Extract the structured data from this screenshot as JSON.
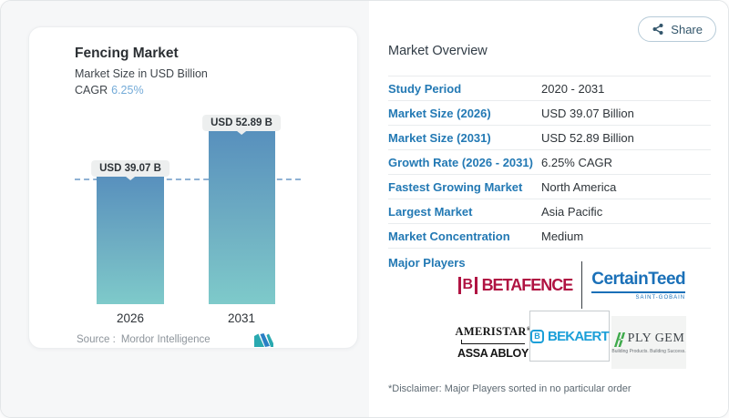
{
  "share": {
    "label": "Share"
  },
  "chart": {
    "title": "Fencing Market",
    "subtitle": "Market Size in USD Billion",
    "cagr_label": "CAGR",
    "cagr_value": "6.25%",
    "source_label": "Source :",
    "source_name": "Mordor Intelligence",
    "bars": [
      {
        "year": "2026",
        "label": "USD 39.07 B"
      },
      {
        "year": "2031",
        "label": "USD 52.89 B"
      }
    ]
  },
  "chart_data": {
    "type": "bar",
    "categories": [
      "2026",
      "2031"
    ],
    "values": [
      39.07,
      52.89
    ],
    "title": "Fencing Market",
    "subtitle": "Market Size in USD Billion",
    "data_labels": [
      "USD 39.07 B",
      "USD 52.89 B"
    ],
    "cagr": "6.25%",
    "ylim": [
      0,
      52.89
    ],
    "grid": false,
    "legend": "none",
    "reference_line": 39.07,
    "bar_color_top": "#5890bd",
    "bar_color_bottom": "#7ecaca"
  },
  "overview": {
    "heading": "Market Overview",
    "rows": [
      {
        "label": "Study Period",
        "value": "2020 - 2031"
      },
      {
        "label": "Market Size (2026)",
        "value": "USD 39.07 Billion"
      },
      {
        "label": "Market Size (2031)",
        "value": "USD 52.89 Billion"
      },
      {
        "label": "Growth Rate (2026 - 2031)",
        "value": "6.25% CAGR"
      },
      {
        "label": "Fastest Growing Market",
        "value": "North America"
      },
      {
        "label": "Largest Market",
        "value": "Asia Pacific"
      },
      {
        "label": "Market Concentration",
        "value": "Medium"
      }
    ],
    "major_players_label": "Major Players",
    "disclaimer": "*Disclaimer: Major Players sorted in no particular order"
  },
  "logos": {
    "betafence": {
      "text": "BETAFENCE",
      "icon_letter": "B",
      "color": "#b01342"
    },
    "certainteed": {
      "text": "CertainTeed",
      "sub": "SAINT-GOBAIN",
      "color": "#1a70b8"
    },
    "ameristar": {
      "text": "AMERISTAR",
      "reg": "®"
    },
    "assa_abloy": {
      "text": "ASSA ABLOY"
    },
    "bekaert": {
      "text": "BEKAERT",
      "icon_letter": "B",
      "color": "#1b9fd8"
    },
    "plygem": {
      "text": "PLY GEM",
      "tagline": "Building Products. Building Success.",
      "color": "#3faa4c"
    }
  },
  "colors": {
    "table_label_blue": "#2379b4",
    "cagr_blue": "#74abd8",
    "dash_line": "#8fb2d4",
    "share_text": "#33566b",
    "mordor_teal": "#2aa9b0",
    "mordor_blue": "#2a7fc5"
  }
}
